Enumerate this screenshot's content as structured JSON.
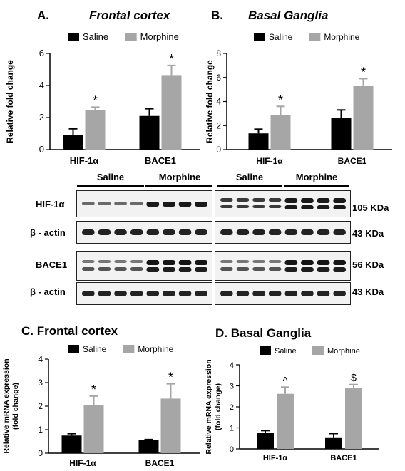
{
  "panels": {
    "A": {
      "letter": "A.",
      "title": "Frontal cortex"
    },
    "B": {
      "letter": "B.",
      "title": "Basal Ganglia"
    },
    "C": {
      "letter": "C.",
      "title": "Frontal cortex"
    },
    "D": {
      "letter": "D.",
      "title": "Basal Ganglia"
    }
  },
  "colors": {
    "saline": "#000000",
    "morphine": "#a6a6a6"
  },
  "chart_data": [
    {
      "id": "A",
      "type": "bar",
      "categories": [
        "HIF-1α",
        "BACE1"
      ],
      "series": [
        {
          "name": "Saline",
          "values": [
            0.9,
            2.1
          ],
          "errors": [
            0.4,
            0.45
          ]
        },
        {
          "name": "Morphine",
          "values": [
            2.45,
            4.65
          ],
          "errors": [
            0.2,
            0.6
          ]
        }
      ],
      "markers": [
        "",
        "*",
        "",
        "*"
      ],
      "ylabel": "Relative fold change",
      "yticks": [
        "0",
        "2",
        "4",
        "6"
      ],
      "ylim": [
        0,
        6
      ],
      "legend": "top"
    },
    {
      "id": "B",
      "type": "bar",
      "categories": [
        "HIF-1α",
        "BACE1"
      ],
      "series": [
        {
          "name": "Saline",
          "values": [
            1.35,
            2.65
          ],
          "errors": [
            0.35,
            0.65
          ]
        },
        {
          "name": "Morphine",
          "values": [
            2.9,
            5.3
          ],
          "errors": [
            0.7,
            0.6
          ]
        }
      ],
      "markers": [
        "",
        "*",
        "",
        "*"
      ],
      "ylabel": "Relative fold change",
      "yticks": [
        "0",
        "2",
        "4",
        "6",
        "8"
      ],
      "ylim": [
        0,
        8
      ],
      "legend": "top"
    },
    {
      "id": "C",
      "type": "bar",
      "categories": [
        "HIF-1α",
        "BACE1"
      ],
      "series": [
        {
          "name": "Saline",
          "values": [
            0.75,
            0.55
          ],
          "errors": [
            0.08,
            0.03
          ]
        },
        {
          "name": "Morphine",
          "values": [
            2.05,
            2.32
          ],
          "errors": [
            0.38,
            0.63
          ]
        }
      ],
      "markers": [
        "",
        "*",
        "",
        "*"
      ],
      "ylabel": "Relative mRNA expression (fold change)",
      "yticks": [
        "0",
        "1",
        "2",
        "3",
        "4"
      ],
      "ylim": [
        0,
        4
      ],
      "legend": "top"
    },
    {
      "id": "D",
      "type": "bar",
      "categories": [
        "HIF-1α",
        "BACE1"
      ],
      "series": [
        {
          "name": "Saline",
          "values": [
            0.75,
            0.55
          ],
          "errors": [
            0.12,
            0.18
          ]
        },
        {
          "name": "Morphine",
          "values": [
            2.62,
            2.88
          ],
          "errors": [
            0.32,
            0.18
          ]
        }
      ],
      "markers": [
        "",
        "^",
        "",
        "$"
      ],
      "ylabel": "Relative mRNA expression (fold change)",
      "yticks": [
        "0",
        "1",
        "2",
        "3",
        "4"
      ],
      "ylim": [
        0,
        4
      ],
      "legend": "top"
    }
  ],
  "western": {
    "group_labels": [
      "Saline",
      "Morphine",
      "Saline",
      "Morphine"
    ],
    "rows": [
      {
        "label": "HIF-1α",
        "size": "105 KDa"
      },
      {
        "label": "β - actin",
        "size": "43 KDa"
      },
      {
        "label": "BACE1",
        "size": "56 KDa"
      },
      {
        "label": "β - actin",
        "size": "43 KDa"
      }
    ]
  }
}
